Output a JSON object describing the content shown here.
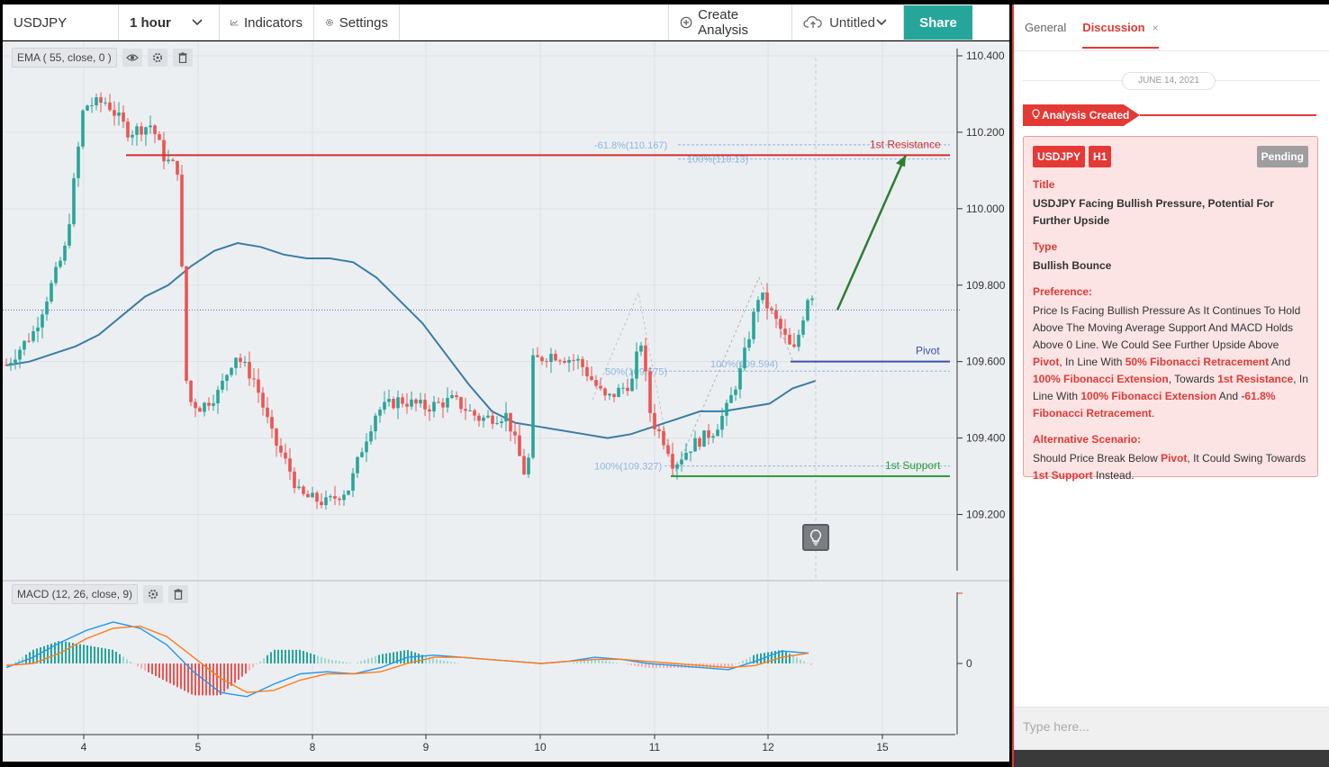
{
  "toolbar": {
    "symbol": "USDJPY",
    "interval": "1 hour",
    "indicators_label": "Indicators",
    "settings_label": "Settings",
    "create_analysis_label": "Create Analysis",
    "untitled_label": "Untitled",
    "share_label": "Share"
  },
  "legends": {
    "ema": "EMA ( 55, close, 0 )",
    "macd": "MACD (12, 26, close, 9)"
  },
  "panel": {
    "tabs": [
      "General",
      "Discussion"
    ],
    "close_x": "×",
    "date": "JUNE 14, 2021",
    "created_label": "Analysis Created",
    "symbol_badge": "USDJPY",
    "timeframe_badge": "H1",
    "status_badge": "Pending",
    "title_heading": "Title",
    "title_text": "USDJPY Facing Bullish Pressure, Potential For Further Upside",
    "type_heading": "Type",
    "type_text": "Bullish Bounce",
    "preference_heading": "Preference:",
    "preference_parts": [
      "Price Is Facing Bullish Pressure As It Continues To Hold Above The Moving Average Support And MACD Holds Above 0 Line. We Could See Further Upside Above ",
      "Pivot",
      ", In Line With ",
      "50% Fibonacci Retracement",
      " And ",
      "100% Fibonacci Extension",
      ", Towards ",
      "1st Resistance",
      ", In Line With ",
      "100% Fibonacci Extension",
      " And ",
      "-61.8% Fibonacci Retracement",
      "."
    ],
    "alternative_heading": "Alternative Scenario:",
    "alternative_parts": [
      "Should Price Break Below ",
      "Pivot",
      ", It Could Swing Towards ",
      "1st Support",
      " Instead."
    ],
    "input_placeholder": "Type here..."
  },
  "colors": {
    "up": "#26a69a",
    "down": "#ef5350",
    "ema": "#3a7ca5",
    "resistance": "#d32f2f",
    "support": "#2e9e3e",
    "pivot": "#3f4fa8",
    "fib": "#8fb5e0",
    "arrow": "#2e7d32",
    "share": "#26a69a",
    "accent": "#e53935"
  },
  "chart_data": {
    "type": "candlestick",
    "symbol": "USDJPY",
    "interval": "1 hour",
    "y_ticks": [
      "110.400",
      "110.200",
      "110.000",
      "109.800",
      "109.600",
      "109.400",
      "109.200"
    ],
    "ylim": [
      109.06,
      110.44
    ],
    "x_tick_labels": [
      "4",
      "5",
      "8",
      "9",
      "10",
      "11",
      "12",
      "15"
    ],
    "current_price": 109.735,
    "ema_series": [
      109.59,
      109.6,
      109.62,
      109.64,
      109.67,
      109.72,
      109.77,
      109.8,
      109.85,
      109.89,
      109.91,
      109.9,
      109.88,
      109.87,
      109.87,
      109.86,
      109.82,
      109.76,
      109.7,
      109.62,
      109.54,
      109.47,
      109.44,
      109.43,
      109.42,
      109.41,
      109.4,
      109.41,
      109.43,
      109.45,
      109.47,
      109.47,
      109.48,
      109.49,
      109.53,
      109.55
    ],
    "levels": [
      {
        "name": "1st Resistance",
        "value": 110.14
      },
      {
        "name": "Pivot",
        "value": 109.6
      },
      {
        "name": "1st Support",
        "value": 109.3
      }
    ],
    "fib_labels": [
      {
        "text": "-61.8%(110.167)",
        "value": 110.167
      },
      {
        "text": "100%(110.13)",
        "value": 110.13
      },
      {
        "text": "50%(109.575)",
        "value": 109.575
      },
      {
        "text": "100%(109.594)",
        "value": 109.594
      },
      {
        "text": "100%(109.327)",
        "value": 109.327
      }
    ],
    "macd": {
      "zero_label": "0",
      "macd_line": [
        -0.02,
        0.03,
        0.1,
        0.16,
        0.2,
        0.17,
        0.09,
        -0.04,
        -0.14,
        -0.16,
        -0.1,
        -0.05,
        -0.04,
        -0.05,
        -0.02,
        0.03,
        0.04,
        0.03,
        0.02,
        0.01,
        0.0,
        0.01,
        0.03,
        0.02,
        0.0,
        -0.01,
        -0.02,
        -0.03,
        0.01,
        0.06,
        0.05
      ],
      "signal_line": [
        -0.01,
        0.0,
        0.05,
        0.12,
        0.17,
        0.18,
        0.13,
        0.03,
        -0.07,
        -0.14,
        -0.13,
        -0.08,
        -0.05,
        -0.05,
        -0.04,
        0.0,
        0.03,
        0.03,
        0.02,
        0.01,
        0.0,
        0.01,
        0.02,
        0.02,
        0.01,
        0.0,
        -0.01,
        -0.02,
        -0.01,
        0.03,
        0.05
      ]
    }
  }
}
